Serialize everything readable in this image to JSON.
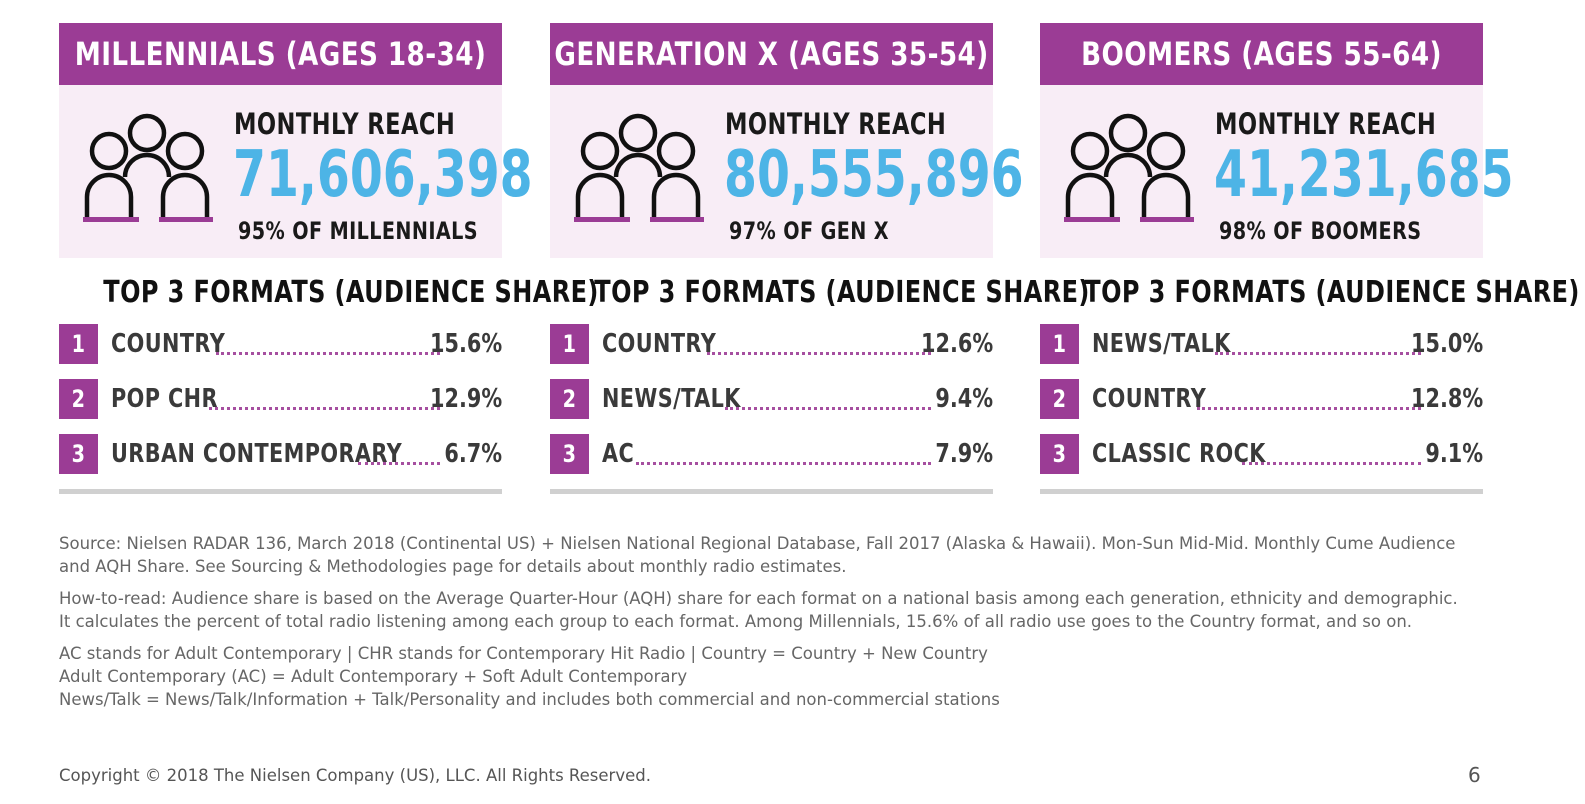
{
  "panels": [
    {
      "header": "MILLENNIALS (AGES 18-34)",
      "reach_label": "MONTHLY REACH",
      "reach_value": "71,606,398",
      "reach_pct": "95% OF MILLENNIALS",
      "formats_title": "TOP 3 FORMATS (AUDIENCE SHARE)",
      "formats": [
        {
          "rank": "1",
          "name": "COUNTRY",
          "share": "15.6%"
        },
        {
          "rank": "2",
          "name": "POP CHR",
          "share": "12.9%"
        },
        {
          "rank": "3",
          "name": "URBAN CONTEMPORARY",
          "share": "6.7%"
        }
      ]
    },
    {
      "header": "GENERATION X (AGES 35-54)",
      "reach_label": "MONTHLY REACH",
      "reach_value": "80,555,896",
      "reach_pct": "97% OF GEN X",
      "formats_title": "TOP 3 FORMATS (AUDIENCE SHARE)",
      "formats": [
        {
          "rank": "1",
          "name": "COUNTRY",
          "share": "12.6%"
        },
        {
          "rank": "2",
          "name": "NEWS/TALK",
          "share": "9.4%"
        },
        {
          "rank": "3",
          "name": "AC",
          "share": "7.9%"
        }
      ]
    },
    {
      "header": "BOOMERS (AGES 55-64)",
      "reach_label": "MONTHLY REACH",
      "reach_value": "41,231,685",
      "reach_pct": "98% OF BOOMERS",
      "formats_title": "TOP 3 FORMATS (AUDIENCE SHARE)",
      "formats": [
        {
          "rank": "1",
          "name": "NEWS/TALK",
          "share": "15.0%"
        },
        {
          "rank": "2",
          "name": "COUNTRY",
          "share": "12.8%"
        },
        {
          "rank": "3",
          "name": "CLASSIC ROCK",
          "share": "9.1%"
        }
      ]
    }
  ],
  "notes": {
    "source": "Source: Nielsen RADAR 136, March 2018 (Continental US) + Nielsen National Regional Database, Fall 2017 (Alaska & Hawaii). Mon-Sun Mid-Mid. Monthly Cume Audience and AQH Share. See Sourcing & Methodologies page for details about monthly radio estimates.",
    "how_to_read": "How-to-read: Audience share is based on the Average Quarter-Hour (AQH) share for each format on a national basis among each generation, ethnicity and demographic. It calculates the percent of total radio listening among each group to each format. Among Millennials, 15.6% of all radio use goes to the Country format, and so on.",
    "definition_1": "AC stands for Adult Contemporary | CHR stands for Contemporary Hit Radio | Country = Country + New Country",
    "definition_2": "Adult Contemporary (AC) = Adult Contemporary + Soft Adult Contemporary",
    "definition_3": "News/Talk = News/Talk/Information + Talk/Personality and includes both commercial and non-commercial stations"
  },
  "footer": {
    "copyright": "Copyright © 2018 The Nielsen Company (US), LLC. All Rights Reserved.",
    "page_number": "6"
  },
  "colors": {
    "accent_purple": "#9b3c95",
    "reach_blue": "#4db4e6",
    "reach_box_bg": "#f8edf6",
    "rule_gray": "#d0d0d0"
  },
  "icons": {
    "audience": "people-group-icon"
  }
}
